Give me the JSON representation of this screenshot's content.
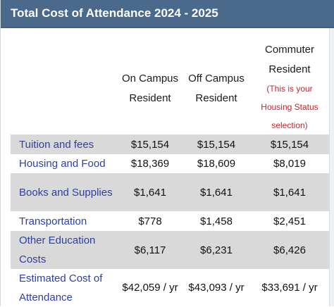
{
  "title": "Total Cost of Attendance 2024 - 2025",
  "columns": [
    {
      "line1": "On Campus",
      "line2": "Resident",
      "note": []
    },
    {
      "line1": "Off Campus",
      "line2": "Resident",
      "note": []
    },
    {
      "line1": "Commuter",
      "line2": "Resident",
      "note": [
        "(This is your",
        "Housing Status",
        "selection)"
      ]
    }
  ],
  "rows": [
    {
      "label": "Tuition and fees",
      "values": [
        "$15,154",
        "$15,154",
        "$15,154"
      ]
    },
    {
      "label": "Housing and Food",
      "values": [
        "$18,369",
        "$18,609",
        "$8,019"
      ]
    },
    {
      "label": "Books and Supplies",
      "values": [
        "$1,641",
        "$1,641",
        "$1,641"
      ]
    },
    {
      "label": "Transportation",
      "values": [
        "$778",
        "$1,458",
        "$2,451"
      ]
    },
    {
      "label": "Other Education Costs",
      "values": [
        "$6,117",
        "$6,231",
        "$6,426"
      ]
    },
    {
      "label": "Estimated Cost of Attendance",
      "values": [
        "$42,059 / yr",
        "$43,093 / yr",
        "$33,691 / yr"
      ]
    }
  ],
  "colors": {
    "header_bg": "#4b6a8b",
    "row_shade": "#d9d9d9",
    "label_text": "#2f3fa3",
    "note_text": "#c0272d"
  }
}
